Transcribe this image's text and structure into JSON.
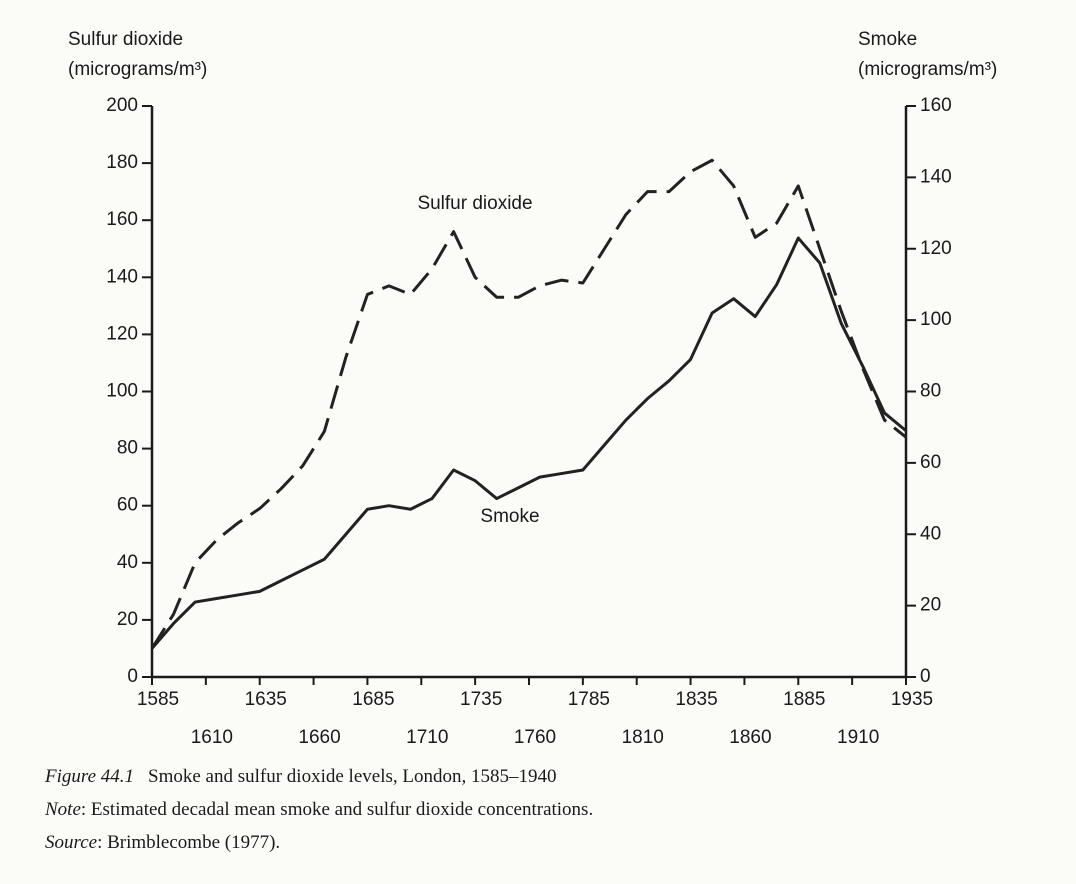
{
  "chart_data": {
    "type": "line",
    "ylabel": [
      "Sulfur dioxide",
      "(micrograms/m³)"
    ],
    "y2label": [
      "Smoke",
      "(micrograms/m³)"
    ],
    "x": [
      1585,
      1595,
      1605,
      1615,
      1625,
      1635,
      1645,
      1655,
      1665,
      1675,
      1685,
      1695,
      1705,
      1715,
      1725,
      1735,
      1745,
      1755,
      1765,
      1775,
      1785,
      1795,
      1805,
      1815,
      1825,
      1835,
      1845,
      1855,
      1865,
      1875,
      1885,
      1895,
      1905,
      1915,
      1925,
      1935
    ],
    "series": [
      {
        "name": "Sulfur dioxide",
        "color": "#222222",
        "dashed": true,
        "values": [
          10,
          22,
          40,
          48,
          54,
          59,
          66,
          74,
          86,
          112,
          134,
          137,
          134,
          143,
          156,
          140,
          133,
          133,
          137,
          139,
          138,
          150,
          162,
          170,
          170,
          177,
          181,
          172,
          154,
          159,
          172,
          150,
          128,
          108,
          90,
          84
        ]
      },
      {
        "name": "Smoke",
        "color": "#222222",
        "dashed": false,
        "axis": "y2",
        "values": [
          8,
          15,
          21,
          22,
          23,
          24,
          27,
          30,
          33,
          40,
          47,
          48,
          47,
          50,
          58,
          55,
          50,
          53,
          56,
          57,
          58,
          65,
          72,
          78,
          83,
          89,
          102,
          106,
          101,
          110,
          123,
          116,
          99,
          87,
          74,
          69
        ]
      }
    ],
    "xlim": [
      1585,
      1935
    ],
    "xticks": [
      1585,
      1610,
      1635,
      1660,
      1685,
      1710,
      1735,
      1760,
      1785,
      1810,
      1835,
      1860,
      1885,
      1910,
      1935
    ],
    "ylim": [
      0,
      200
    ],
    "yticks": [
      0,
      20,
      40,
      60,
      80,
      100,
      120,
      140,
      160,
      180,
      200
    ],
    "y2lim": [
      0,
      160
    ],
    "y2ticks": [
      0,
      20,
      40,
      60,
      80,
      100,
      120,
      140,
      160
    ],
    "caption": [
      {
        "label": "Figure 44.1",
        "text": "Smoke and sulfur dioxide levels, London, 1585–1940"
      },
      {
        "label": "Note",
        "text": ": Estimated decadal mean smoke and sulfur dioxide concentrations."
      },
      {
        "label": "Source",
        "text": ": Brimblecombe (1977)."
      }
    ]
  }
}
